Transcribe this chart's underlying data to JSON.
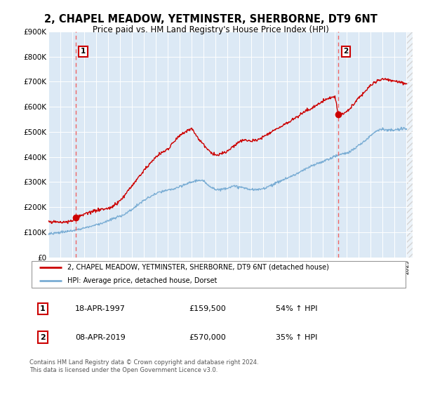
{
  "title": "2, CHAPEL MEADOW, YETMINSTER, SHERBORNE, DT9 6NT",
  "subtitle": "Price paid vs. HM Land Registry's House Price Index (HPI)",
  "legend_line1": "2, CHAPEL MEADOW, YETMINSTER, SHERBORNE, DT9 6NT (detached house)",
  "legend_line2": "HPI: Average price, detached house, Dorset",
  "purchase1_date": "18-APR-1997",
  "purchase1_price": 159500,
  "purchase1_label": "54% ↑ HPI",
  "purchase1_x": 1997.3,
  "purchase2_date": "08-APR-2019",
  "purchase2_price": 570000,
  "purchase2_label": "35% ↑ HPI",
  "purchase2_x": 2019.3,
  "hpi_color": "#7aadd4",
  "price_color": "#cc0000",
  "dashed_color": "#ee6666",
  "background_color": "#dce9f5",
  "footer": "Contains HM Land Registry data © Crown copyright and database right 2024.\nThis data is licensed under the Open Government Licence v3.0.",
  "ylim": [
    0,
    900000
  ],
  "xlim_min": 1995,
  "xlim_max": 2025.5,
  "hpi_waypoints": [
    [
      1995.0,
      95000
    ],
    [
      1995.5,
      97000
    ],
    [
      1996.0,
      100000
    ],
    [
      1996.5,
      103000
    ],
    [
      1997.0,
      107000
    ],
    [
      1997.5,
      112000
    ],
    [
      1998.0,
      118000
    ],
    [
      1998.5,
      124000
    ],
    [
      1999.0,
      130000
    ],
    [
      1999.5,
      137000
    ],
    [
      2000.0,
      145000
    ],
    [
      2000.5,
      155000
    ],
    [
      2001.0,
      165000
    ],
    [
      2001.5,
      176000
    ],
    [
      2002.0,
      192000
    ],
    [
      2002.5,
      210000
    ],
    [
      2003.0,
      228000
    ],
    [
      2003.5,
      242000
    ],
    [
      2004.0,
      255000
    ],
    [
      2004.5,
      263000
    ],
    [
      2005.0,
      268000
    ],
    [
      2005.5,
      274000
    ],
    [
      2006.0,
      281000
    ],
    [
      2006.5,
      292000
    ],
    [
      2007.0,
      302000
    ],
    [
      2007.5,
      308000
    ],
    [
      2008.0,
      304000
    ],
    [
      2008.5,
      286000
    ],
    [
      2009.0,
      272000
    ],
    [
      2009.5,
      272000
    ],
    [
      2010.0,
      280000
    ],
    [
      2010.5,
      285000
    ],
    [
      2011.0,
      283000
    ],
    [
      2011.5,
      278000
    ],
    [
      2012.0,
      272000
    ],
    [
      2012.5,
      272000
    ],
    [
      2013.0,
      278000
    ],
    [
      2013.5,
      288000
    ],
    [
      2014.0,
      298000
    ],
    [
      2014.5,
      310000
    ],
    [
      2015.0,
      320000
    ],
    [
      2015.5,
      330000
    ],
    [
      2016.0,
      342000
    ],
    [
      2016.5,
      355000
    ],
    [
      2017.0,
      368000
    ],
    [
      2017.5,
      378000
    ],
    [
      2018.0,
      388000
    ],
    [
      2018.5,
      398000
    ],
    [
      2019.0,
      408000
    ],
    [
      2019.5,
      415000
    ],
    [
      2020.0,
      420000
    ],
    [
      2020.5,
      432000
    ],
    [
      2021.0,
      450000
    ],
    [
      2021.5,
      468000
    ],
    [
      2022.0,
      490000
    ],
    [
      2022.5,
      510000
    ],
    [
      2023.0,
      515000
    ],
    [
      2023.5,
      510000
    ],
    [
      2024.0,
      512000
    ],
    [
      2024.5,
      515000
    ],
    [
      2025.0,
      520000
    ]
  ],
  "price_waypoints": [
    [
      1995.0,
      140000
    ],
    [
      1995.5,
      141000
    ],
    [
      1996.0,
      142000
    ],
    [
      1996.5,
      144000
    ],
    [
      1997.0,
      147000
    ],
    [
      1997.3,
      159500
    ],
    [
      1997.5,
      163000
    ],
    [
      1998.0,
      172000
    ],
    [
      1998.5,
      182000
    ],
    [
      1999.0,
      190000
    ],
    [
      1999.5,
      195000
    ],
    [
      2000.0,
      198000
    ],
    [
      2000.5,
      210000
    ],
    [
      2001.0,
      230000
    ],
    [
      2001.5,
      258000
    ],
    [
      2002.0,
      290000
    ],
    [
      2002.5,
      322000
    ],
    [
      2003.0,
      355000
    ],
    [
      2003.5,
      382000
    ],
    [
      2004.0,
      408000
    ],
    [
      2004.5,
      428000
    ],
    [
      2005.0,
      440000
    ],
    [
      2005.5,
      470000
    ],
    [
      2006.0,
      500000
    ],
    [
      2006.5,
      510000
    ],
    [
      2007.0,
      525000
    ],
    [
      2007.5,
      490000
    ],
    [
      2008.0,
      460000
    ],
    [
      2008.5,
      430000
    ],
    [
      2009.0,
      415000
    ],
    [
      2009.5,
      420000
    ],
    [
      2010.0,
      430000
    ],
    [
      2010.5,
      450000
    ],
    [
      2011.0,
      470000
    ],
    [
      2011.5,
      478000
    ],
    [
      2012.0,
      472000
    ],
    [
      2012.5,
      475000
    ],
    [
      2013.0,
      490000
    ],
    [
      2013.5,
      505000
    ],
    [
      2014.0,
      518000
    ],
    [
      2014.5,
      530000
    ],
    [
      2015.0,
      545000
    ],
    [
      2015.5,
      560000
    ],
    [
      2016.0,
      575000
    ],
    [
      2016.5,
      590000
    ],
    [
      2017.0,
      600000
    ],
    [
      2017.5,
      615000
    ],
    [
      2018.0,
      630000
    ],
    [
      2018.5,
      642000
    ],
    [
      2019.0,
      648000
    ],
    [
      2019.3,
      570000
    ],
    [
      2019.5,
      575000
    ],
    [
      2020.0,
      590000
    ],
    [
      2020.5,
      615000
    ],
    [
      2021.0,
      648000
    ],
    [
      2021.5,
      670000
    ],
    [
      2022.0,
      695000
    ],
    [
      2022.5,
      710000
    ],
    [
      2023.0,
      720000
    ],
    [
      2023.5,
      715000
    ],
    [
      2024.0,
      710000
    ],
    [
      2024.5,
      705000
    ],
    [
      2025.0,
      700000
    ]
  ]
}
